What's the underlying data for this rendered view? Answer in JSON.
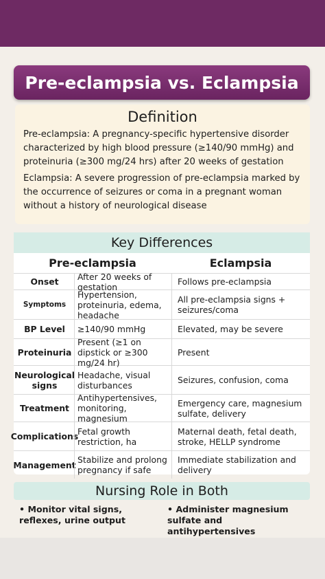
{
  "header": {
    "title": "Pre-eclampsia vs. Eclampsia"
  },
  "definition": {
    "heading": "Definition",
    "paragraphs": [
      "Pre-eclampsia: A pregnancy-specific hypertensive disorder characterized by high blood pressure (≥140/90 mmHg) and proteinuria (≥300 mg/24 hrs) after 20 weeks of gestation",
      "Eclampsia: A severe progression of pre-eclampsia marked by the occurrence of seizures or coma in a pregnant woman without a history of neurological disease"
    ]
  },
  "key_differences": {
    "heading": "Key Differences",
    "columns": [
      "Pre-eclampsia",
      "Eclampsia"
    ],
    "rows": [
      [
        "Onset",
        "After 20 weeks of gestation",
        "Follows pre-eclampsia"
      ],
      [
        "Symptoms",
        "Hypertension, proteinuria, edema, headache",
        "All pre-eclampsia signs + seizures/coma"
      ],
      [
        "BP Level",
        "≥140/90 mmHg",
        "Elevated, may be severe"
      ],
      [
        "Proteinuria",
        "Present (≥1 on dipstick or ≥300 mg/24 hr)",
        "Present"
      ],
      [
        "Neurological signs",
        "Headache, visual disturbances",
        "Seizures, confusion, coma"
      ],
      [
        "Treatment",
        "Antihypertensives, monitoring, magnesium",
        "Emergency care, magnesium sulfate, delivery"
      ],
      [
        "Complications",
        "Fetal growth restriction, ha",
        "Maternal death, fetal death, stroke, HELLP syndrome"
      ],
      [
        "Management",
        "Stabilize and prolong pregnancy if safe",
        "Immediate stabilization and delivery"
      ]
    ]
  },
  "nursing": {
    "heading": "Nursing Role in Both",
    "items": [
      "Monitor vital signs, reflexes, urine output",
      "Administer magnesium sulfate and antihypertensives"
    ]
  }
}
